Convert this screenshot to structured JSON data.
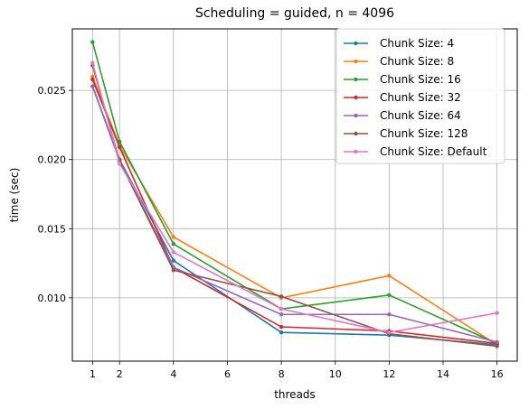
{
  "chart_data": {
    "type": "line",
    "title": "Scheduling = guided, n = 4096",
    "xlabel": "threads",
    "ylabel": "time (sec)",
    "x": [
      1,
      2,
      4,
      8,
      12,
      16
    ],
    "xticks": [
      1,
      2,
      4,
      6,
      8,
      10,
      12,
      14,
      16
    ],
    "yticks": [
      0.01,
      0.015,
      0.02,
      0.025
    ],
    "ytick_labels": [
      "0.010",
      "0.015",
      "0.020",
      "0.025"
    ],
    "xlim": [
      0.25,
      16.75
    ],
    "ylim": [
      0.00542,
      0.02945
    ],
    "grid": true,
    "legend": "top-right",
    "series": [
      {
        "name": "Chunk Size: 4",
        "color": "#1f77b4",
        "values": [
          0.0253,
          0.02,
          0.0127,
          0.0075,
          0.0073,
          0.0066
        ]
      },
      {
        "name": "Chunk Size: 8",
        "color": "#ff7f0e",
        "values": [
          0.026,
          0.021,
          0.0144,
          0.01,
          0.0116,
          0.0066
        ]
      },
      {
        "name": "Chunk Size: 16",
        "color": "#2ca02c",
        "values": [
          0.0285,
          0.0213,
          0.0139,
          0.0092,
          0.0102,
          0.0067
        ]
      },
      {
        "name": "Chunk Size: 32",
        "color": "#d62728",
        "values": [
          0.0258,
          0.0209,
          0.0122,
          0.0079,
          0.0076,
          0.0067
        ]
      },
      {
        "name": "Chunk Size: 64",
        "color": "#9467bd",
        "values": [
          0.0253,
          0.0199,
          0.0122,
          0.0088,
          0.0088,
          0.0068
        ]
      },
      {
        "name": "Chunk Size: 128",
        "color": "#8c564b",
        "values": [
          0.0268,
          0.0199,
          0.012,
          0.0101,
          0.0074,
          0.0065
        ]
      },
      {
        "name": "Chunk Size: Default",
        "color": "#e377c2",
        "values": [
          0.027,
          0.0197,
          0.0133,
          0.0092,
          0.0075,
          0.0089
        ]
      }
    ]
  }
}
